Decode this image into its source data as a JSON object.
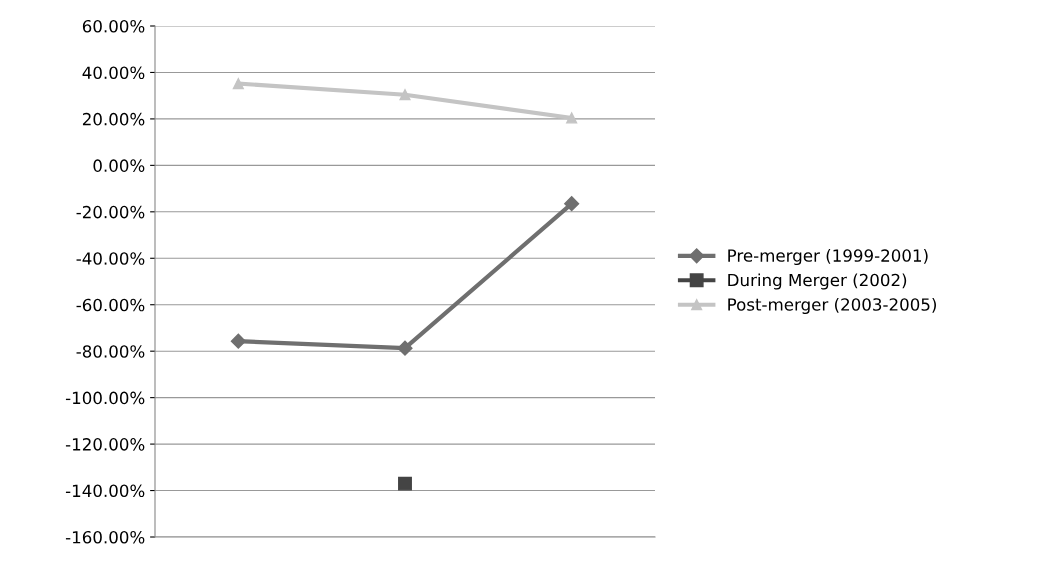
{
  "chart_data": {
    "type": "line",
    "categories": [
      null,
      null,
      null
    ],
    "series": [
      {
        "name": "Pre-merger (1999-2001)",
        "color": "#6f6f6f",
        "marker": "diamond",
        "values": [
          -75.7,
          -78.7,
          -16.5
        ]
      },
      {
        "name": "During Merger (2002)",
        "color": "#444444",
        "marker": "square",
        "values": [
          null,
          -137,
          null
        ]
      },
      {
        "name": "Post-merger (2003-2005)",
        "color": "#c4c4c4",
        "marker": "triangle",
        "values": [
          35.2,
          30.4,
          20.4
        ]
      }
    ],
    "ylim": [
      -160,
      60
    ],
    "yticks": [
      {
        "value": -160,
        "label": "-160.00%"
      },
      {
        "value": -140,
        "label": "-140.00%"
      },
      {
        "value": -120,
        "label": "-120.00%"
      },
      {
        "value": -100,
        "label": "-100.00%"
      },
      {
        "value": -80,
        "label": "-80.00%"
      },
      {
        "value": -60,
        "label": "-60.00%"
      },
      {
        "value": -40,
        "label": "-40.00%"
      },
      {
        "value": -20,
        "label": "-20.00%"
      },
      {
        "value": 0,
        "label": "0.00%"
      },
      {
        "value": 20,
        "label": "20.00%"
      },
      {
        "value": 40,
        "label": "40.00%"
      },
      {
        "value": 60,
        "label": "60.00%"
      }
    ],
    "grid": "y",
    "legend": "right",
    "line_style": "solid"
  }
}
